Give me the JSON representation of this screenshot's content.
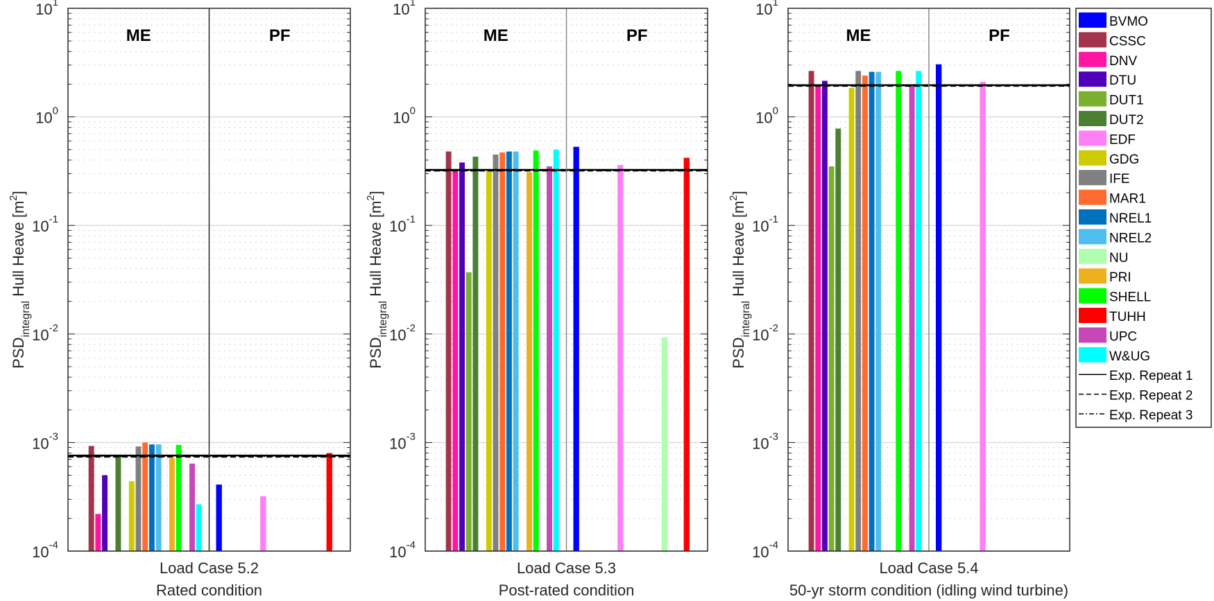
{
  "chart_data": {
    "type": "bar",
    "yscale": "log",
    "ylim": [
      0.0001,
      10
    ],
    "ylabel": {
      "main": "PSD",
      "sub": "integral",
      "rest": " Hull Heave [m",
      "sup": "2",
      "end": "]"
    },
    "yticks": [
      {
        "base": "10",
        "exp": "1",
        "value": 10
      },
      {
        "base": "10",
        "exp": "0",
        "value": 1
      },
      {
        "base": "10",
        "exp": "-1",
        "value": 0.1
      },
      {
        "base": "10",
        "exp": "-2",
        "value": 0.01
      },
      {
        "base": "10",
        "exp": "-3",
        "value": 0.001
      },
      {
        "base": "10",
        "exp": "-4",
        "value": 0.0001
      }
    ],
    "grid": "major-solid-minor-dotted",
    "legend_position": "right-outside",
    "groups": [
      "ME",
      "PF"
    ],
    "series": [
      {
        "name": "BVMO",
        "color": "#0000FF"
      },
      {
        "name": "CSSC",
        "color": "#A2344B"
      },
      {
        "name": "DNV",
        "color": "#FF14A4"
      },
      {
        "name": "DTU",
        "color": "#5000B8"
      },
      {
        "name": "DUT1",
        "color": "#7BAF2E"
      },
      {
        "name": "DUT2",
        "color": "#4B8032"
      },
      {
        "name": "EDF",
        "color": "#FF80F6"
      },
      {
        "name": "GDG",
        "color": "#CECC00"
      },
      {
        "name": "IFE",
        "color": "#808080"
      },
      {
        "name": "MAR1",
        "color": "#FF6A30"
      },
      {
        "name": "NREL1",
        "color": "#0072BD"
      },
      {
        "name": "NREL2",
        "color": "#4DBEEE"
      },
      {
        "name": "NU",
        "color": "#B0FFB0"
      },
      {
        "name": "PRI",
        "color": "#EDB120"
      },
      {
        "name": "SHELL",
        "color": "#00FF00"
      },
      {
        "name": "TUHH",
        "color": "#FF0000"
      },
      {
        "name": "UPC",
        "color": "#C847B8"
      },
      {
        "name": "W&UG",
        "color": "#00FFFF"
      }
    ],
    "experiment_legend": [
      {
        "name": "Exp. Repeat 1",
        "style": "solid"
      },
      {
        "name": "Exp. Repeat 2",
        "style": "dashed"
      },
      {
        "name": "Exp. Repeat 3",
        "style": "dashdot"
      }
    ],
    "panels": [
      {
        "xlabel": "Load Case 5.2",
        "subtitle": "Rated condition",
        "experiment": [
          0.00076,
          0.00074,
          0.00075
        ],
        "ME": {
          "CSSC": 0.00093,
          "DNV": 0.00022,
          "DTU": 0.0005,
          "DUT2": 0.00077,
          "GDG": 0.00044,
          "IFE": 0.00092,
          "MAR1": 0.001,
          "NREL1": 0.00096,
          "NREL2": 0.00096,
          "PRI": 0.00072,
          "SHELL": 0.00095,
          "UPC": 0.00064,
          "W&UG": 0.00027
        },
        "PF": {
          "BVMO": 0.00041,
          "EDF": 0.00032,
          "TUHH": 0.0008
        }
      },
      {
        "xlabel": "Load Case 5.3",
        "subtitle": "Post-rated condition",
        "experiment": [
          0.325,
          0.32,
          0.322
        ],
        "ME": {
          "CSSC": 0.48,
          "DNV": 0.33,
          "DTU": 0.38,
          "DUT1": 0.037,
          "DUT2": 0.43,
          "GDG": 0.33,
          "IFE": 0.45,
          "MAR1": 0.47,
          "NREL1": 0.48,
          "NREL2": 0.48,
          "PRI": 0.31,
          "SHELL": 0.49,
          "UPC": 0.35,
          "W&UG": 0.5
        },
        "PF": {
          "BVMO": 0.53,
          "EDF": 0.36,
          "NU": 0.0093,
          "TUHH": 0.42
        }
      },
      {
        "xlabel": "Load Case 5.4",
        "subtitle": "50-yr storm condition (idling wind turbine)",
        "experiment": [
          1.96,
          1.93,
          1.95
        ],
        "ME": {
          "CSSC": 2.65,
          "DNV": 1.95,
          "DTU": 2.15,
          "DUT1": 0.35,
          "DUT2": 0.78,
          "GDG": 1.85,
          "IFE": 2.65,
          "MAR1": 2.4,
          "NREL1": 2.6,
          "NREL2": 2.6,
          "SHELL": 2.65,
          "UPC": 1.95,
          "W&UG": 2.65
        },
        "PF": {
          "BVMO": 3.05,
          "EDF": 2.1
        }
      }
    ]
  }
}
